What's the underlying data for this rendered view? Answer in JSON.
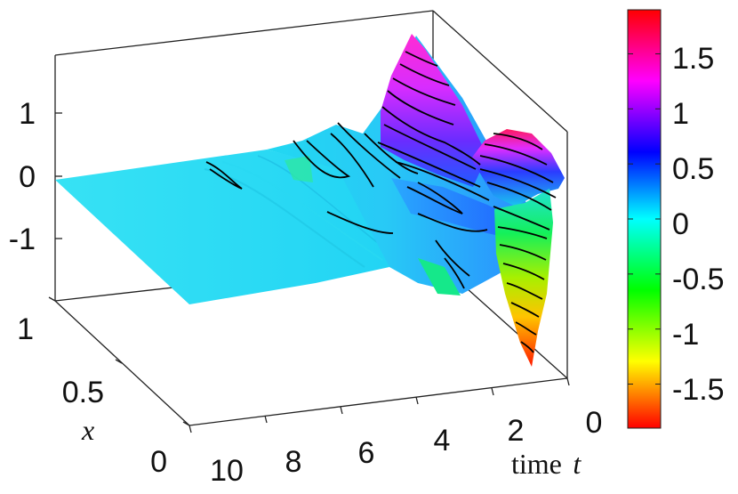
{
  "chart_data": {
    "type": "surface",
    "title": "",
    "z_range": [
      -1.9,
      1.9
    ],
    "axes": {
      "z": {
        "ticks": [
          {
            "value": 1,
            "label": "1"
          },
          {
            "value": 0,
            "label": "0"
          },
          {
            "value": -1,
            "label": "-1"
          }
        ]
      },
      "x": {
        "label": "x",
        "range": [
          0,
          1
        ],
        "ticks": [
          {
            "value": 1,
            "label": "1"
          },
          {
            "value": 0.5,
            "label": "0.5"
          },
          {
            "value": 0,
            "label": "0"
          }
        ]
      },
      "t": {
        "label_prefix": "time",
        "label_var": "t",
        "range": [
          0,
          10
        ],
        "ticks": [
          {
            "value": 10,
            "label": "10"
          },
          {
            "value": 8,
            "label": "8"
          },
          {
            "value": 6,
            "label": "6"
          },
          {
            "value": 4,
            "label": "4"
          },
          {
            "value": 2,
            "label": "2"
          },
          {
            "value": 0,
            "label": "0"
          }
        ]
      }
    },
    "colorbar": {
      "range": [
        -1.9,
        1.9
      ],
      "colormap": "hsv",
      "colors": [
        "#ff0000",
        "#ffff00",
        "#00ff00",
        "#00ffff",
        "#0000ff",
        "#ff00ff",
        "#ff0000"
      ],
      "ticks": [
        {
          "value": 1.5,
          "label": "1.5"
        },
        {
          "value": 1,
          "label": "1"
        },
        {
          "value": 0.5,
          "label": "0.5"
        },
        {
          "value": 0,
          "label": "0"
        },
        {
          "value": -0.5,
          "label": "-0.5"
        },
        {
          "value": -1,
          "label": "-1"
        },
        {
          "value": -1.5,
          "label": "-1.5"
        }
      ]
    },
    "surface_samples": {
      "t": [
        10,
        8,
        6,
        5,
        4,
        3,
        2,
        1,
        0
      ],
      "z_max": [
        0.03,
        0.05,
        0.4,
        0.75,
        1.15,
        1.9,
        1.0,
        1.25,
        0.4
      ],
      "z_min": [
        -0.03,
        -0.05,
        -0.35,
        -0.5,
        -0.8,
        -0.7,
        -1.1,
        -1.8,
        -0.3
      ]
    },
    "grid": false,
    "legend": "colorbar-right"
  }
}
